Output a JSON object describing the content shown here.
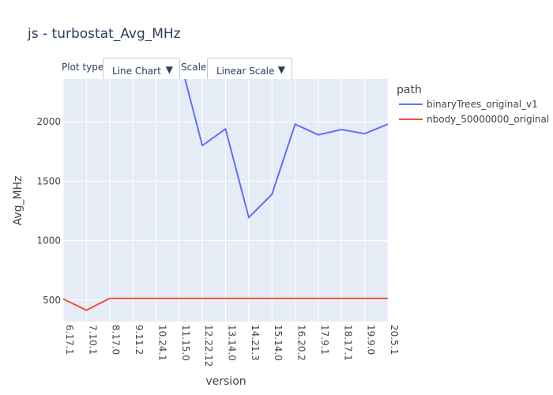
{
  "title": "js - turbostat_Avg_MHz",
  "controls": {
    "plot_type_label": "Plot type:",
    "plot_type_value": "Line Chart",
    "scale_label": "Scale:",
    "scale_value": "Linear Scale",
    "dropdown_arrow_icon": "triangle-down"
  },
  "colors": {
    "plot_bg": "#e5ecf6",
    "grid": "#ffffff",
    "text": "#444444",
    "title": "#2a3f5f"
  },
  "chart_data": {
    "type": "line",
    "xlabel": "version",
    "ylabel": "Avg_MHz",
    "categories": [
      "6.17.1",
      "7.10.1",
      "8.17.0",
      "9.11.2",
      "10.24.1",
      "11.15.0",
      "12.22.12",
      "13.14.0",
      "14.21.3",
      "15.14.0",
      "16.20.2",
      "17.9.1",
      "18.17.1",
      "19.9.0",
      "20.5.1"
    ],
    "yticks": [
      500,
      1000,
      1500,
      2000
    ],
    "ylim": [
      320,
      2360
    ],
    "grid": true,
    "legend": {
      "title": "path",
      "placement": "right"
    },
    "series": [
      {
        "name": "binaryTrees_original_v1",
        "color": "#636efa",
        "values": [
          null,
          null,
          null,
          null,
          null,
          2550,
          1800,
          1940,
          1195,
          1390,
          1980,
          1890,
          1935,
          1900,
          1980
        ]
      },
      {
        "name": "nbody_50000000_original",
        "color": "#ef553b",
        "values": [
          510,
          415,
          515,
          515,
          515,
          515,
          515,
          515,
          515,
          515,
          515,
          515,
          515,
          515,
          515
        ]
      }
    ]
  }
}
